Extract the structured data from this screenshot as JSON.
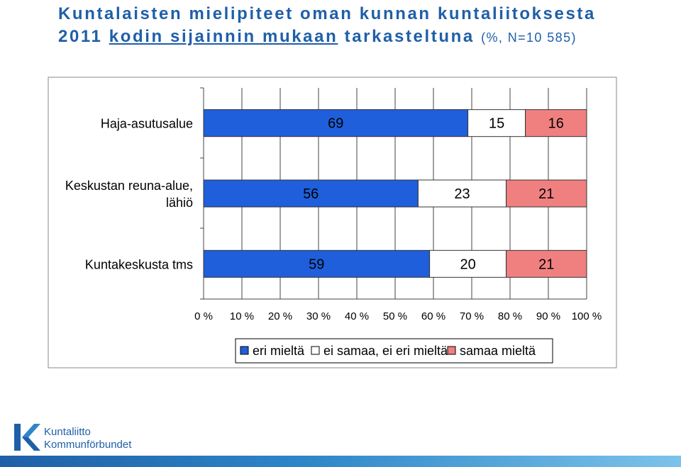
{
  "header": {
    "title_line1": "Kuntalaisten mielipiteet oman kunnan kuntaliitoksesta",
    "title_line2_year": "2011",
    "title_line2_underlined": "kodin sijainnin mukaan",
    "title_line2_rest": "tarkasteltuna",
    "title_line2_note": "(%, N=10 585)"
  },
  "chart_data": {
    "type": "bar",
    "orientation": "horizontal",
    "stacked": "percent",
    "categories": [
      "Haja-asutusalue",
      "Keskustan reuna-alue, lähiö",
      "Kuntakeskusta tms"
    ],
    "category_lines": [
      [
        "Haja-asutusalue"
      ],
      [
        "Keskustan reuna-alue,",
        "lähiö"
      ],
      [
        "Kuntakeskusta tms"
      ]
    ],
    "series": [
      {
        "name": "eri mieltä",
        "values": [
          69,
          56,
          59
        ],
        "color": "#1f5fdb"
      },
      {
        "name": "ei samaa, ei eri mieltä",
        "values": [
          15,
          23,
          20
        ],
        "color": "#ffffff"
      },
      {
        "name": "samaa mieltä",
        "values": [
          16,
          21,
          21
        ],
        "color": "#f08080"
      }
    ],
    "xlim": [
      0,
      100
    ],
    "xticks": [
      0,
      10,
      20,
      30,
      40,
      50,
      60,
      70,
      80,
      90,
      100
    ],
    "xtick_labels": [
      "0 %",
      "10 %",
      "20 %",
      "30 %",
      "40 %",
      "50 %",
      "60 %",
      "70 %",
      "80 %",
      "90 %",
      "100 %"
    ],
    "grid": true,
    "legend": "bottom"
  },
  "footer": {
    "logo_line1": "Kuntaliitto",
    "logo_line2": "Kommunförbundet"
  }
}
